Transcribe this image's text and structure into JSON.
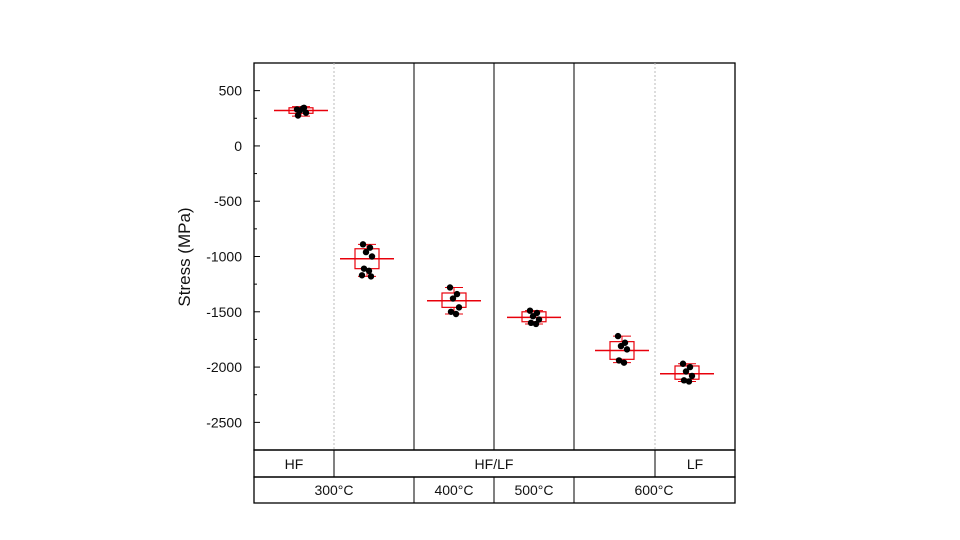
{
  "chart_data": {
    "type": "box",
    "title": "",
    "ylabel": "Stress (MPa)",
    "xlabel": "",
    "ylim": [
      -2750,
      750
    ],
    "yticks": [
      500,
      0,
      -500,
      -1000,
      -1500,
      -2000,
      -2500
    ],
    "ytick_labels": [
      "500",
      "0",
      "-500",
      "-1000",
      "-1500",
      "-2000",
      "-2500"
    ],
    "box_color": "#e8000b",
    "point_color": "#000000",
    "grid": false,
    "groups": [
      {
        "mean": 320,
        "q1": 295,
        "q3": 345,
        "whisker_low": 270,
        "whisker_high": 355,
        "points": [
          330,
          345,
          320,
          300,
          275,
          340
        ]
      },
      {
        "mean": -1020,
        "q1": -1110,
        "q3": -930,
        "whisker_low": -1180,
        "whisker_high": -890,
        "points": [
          -890,
          -920,
          -960,
          -1000,
          -1110,
          -1130,
          -1170,
          -1180
        ]
      },
      {
        "mean": -1400,
        "q1": -1460,
        "q3": -1330,
        "whisker_low": -1520,
        "whisker_high": -1280,
        "points": [
          -1280,
          -1340,
          -1380,
          -1460,
          -1500,
          -1520
        ]
      },
      {
        "mean": -1550,
        "q1": -1590,
        "q3": -1500,
        "whisker_low": -1610,
        "whisker_high": -1490,
        "points": [
          -1490,
          -1510,
          -1540,
          -1570,
          -1600,
          -1610
        ]
      },
      {
        "mean": -1850,
        "q1": -1930,
        "q3": -1770,
        "whisker_low": -1960,
        "whisker_high": -1720,
        "points": [
          -1720,
          -1780,
          -1810,
          -1840,
          -1940,
          -1960
        ]
      },
      {
        "mean": -2060,
        "q1": -2110,
        "q3": -1990,
        "whisker_low": -2130,
        "whisker_high": -1970,
        "points": [
          -1970,
          -2000,
          -2040,
          -2080,
          -2120,
          -2130
        ]
      }
    ],
    "method_row": [
      "HF",
      "HF/LF",
      "LF"
    ],
    "temperature_row": [
      "300°C",
      "400°C",
      "500°C",
      "600°C"
    ]
  }
}
